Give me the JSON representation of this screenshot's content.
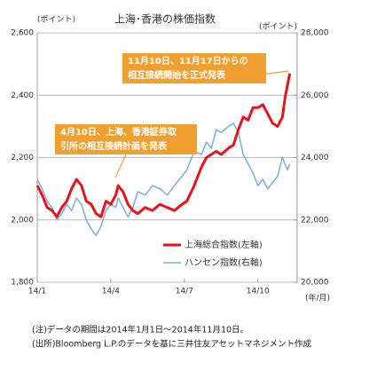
{
  "chart_data": {
    "type": "line",
    "title": "上海･香港の株価指数",
    "ylabel": "(ポイント)",
    "y2label": "(ポイント)",
    "xlabel": "(年/月)",
    "x": [
      0,
      0.2,
      0.4,
      0.6,
      0.8,
      1.0,
      1.2,
      1.4,
      1.6,
      1.8,
      2.0,
      2.2,
      2.4,
      2.6,
      2.8,
      3.0,
      3.2,
      3.3,
      3.5,
      3.7,
      3.9,
      4.1,
      4.4,
      4.7,
      5.0,
      5.3,
      5.6,
      5.9,
      6.1,
      6.4,
      6.7,
      6.9,
      7.1,
      7.3,
      7.5,
      7.8,
      8.0,
      8.2,
      8.4,
      8.6,
      8.8,
      9.0,
      9.2,
      9.4,
      9.6,
      9.8,
      10.0,
      10.1,
      10.2,
      10.3
    ],
    "series": [
      {
        "name": "上海総合指数(左軸)",
        "color": "#e8141c",
        "values": [
          2110,
          2080,
          2040,
          2030,
          2010,
          2040,
          2060,
          2100,
          2130,
          2110,
          2060,
          2050,
          2020,
          2010,
          2060,
          2050,
          2080,
          2110,
          2090,
          2050,
          2030,
          2020,
          2040,
          2030,
          2050,
          2040,
          2030,
          2050,
          2060,
          2110,
          2170,
          2200,
          2210,
          2220,
          2210,
          2230,
          2240,
          2290,
          2330,
          2320,
          2360,
          2360,
          2370,
          2340,
          2310,
          2300,
          2330,
          2390,
          2430,
          2470
        ]
      },
      {
        "name": "ハンセン指数(右軸)",
        "color": "#7fb2dc",
        "axis": "y2",
        "values": [
          23300,
          23000,
          22600,
          22400,
          22000,
          22200,
          22500,
          22300,
          22700,
          22500,
          22000,
          21700,
          21500,
          21800,
          22300,
          22500,
          22400,
          22700,
          22400,
          22100,
          22400,
          22900,
          22800,
          23100,
          23000,
          22800,
          23100,
          23400,
          23600,
          24200,
          24100,
          24500,
          24300,
          24900,
          24800,
          25000,
          25100,
          24800,
          24100,
          23800,
          23500,
          23100,
          23300,
          23000,
          23200,
          23400,
          24000,
          23800,
          23600,
          23800
        ]
      }
    ],
    "xlim": [
      0,
      10.6
    ],
    "xticks": [
      {
        "value": 0,
        "label": "14/1"
      },
      {
        "value": 3,
        "label": "14/4"
      },
      {
        "value": 6,
        "label": "14/7"
      },
      {
        "value": 9,
        "label": "14/10"
      }
    ],
    "ylim": [
      1800,
      2600
    ],
    "yticks": [
      {
        "value": 1800,
        "label": "1,800"
      },
      {
        "value": 2000,
        "label": "2,000"
      },
      {
        "value": 2200,
        "label": "2,200"
      },
      {
        "value": 2400,
        "label": "2,400"
      },
      {
        "value": 2600,
        "label": "2,600"
      }
    ],
    "y2lim": [
      20000,
      28000
    ],
    "y2ticks": [
      {
        "value": 20000,
        "label": "20,000"
      },
      {
        "value": 22000,
        "label": "22,000"
      },
      {
        "value": 24000,
        "label": "24,000"
      },
      {
        "value": 26000,
        "label": "26,000"
      },
      {
        "value": 28000,
        "label": "28,000"
      }
    ],
    "grid": true,
    "annotations": [
      [
        "4月10日、上海、香港証券取",
        "引所の相互接続計画を発表"
      ],
      [
        "11月10日、11月17日からの",
        "相互接続開始を正式発表"
      ]
    ],
    "notes": [
      "(注)データの期間は2014年1月1日～2014年11月10日。",
      "(出所)Bloomberg L.P.のデータを基に三井住友アセットマネジメント作成"
    ]
  }
}
